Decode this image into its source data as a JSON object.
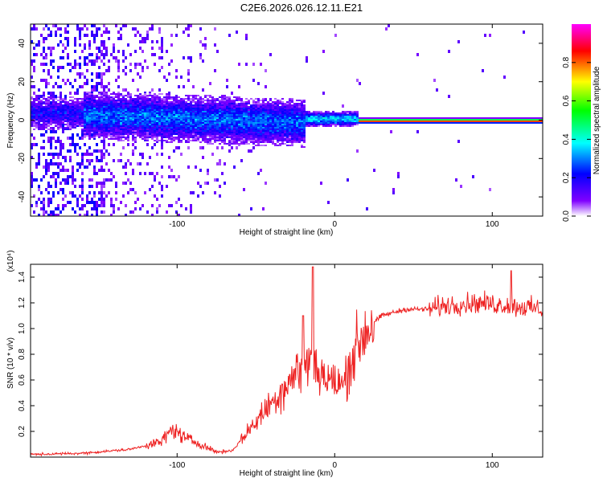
{
  "title": "C2E6.2026.026.12.11.E21",
  "chart_data": [
    {
      "type": "heatmap",
      "xlabel": "Height of straight line (km)",
      "ylabel": "Frequency (Hz)",
      "xlim": [
        -193,
        132
      ],
      "ylim": [
        -50,
        50
      ],
      "xticks": [
        -100,
        0,
        100
      ],
      "yticks": [
        -40,
        -20,
        0,
        20,
        40
      ],
      "colorbar": {
        "label": "Normalized spectral amplitude",
        "range": [
          0,
          1
        ],
        "ticks": [
          "0.0",
          "0.2",
          "0.4",
          "0.6",
          "0.8"
        ],
        "colors": [
          "#ffffff",
          "#8000ff",
          "#0000ff",
          "#00ffff",
          "#00ff00",
          "#ffff00",
          "#ff0000",
          "#ff00ff"
        ]
      }
    },
    {
      "type": "line",
      "xlabel": "Height of straight line (km)",
      "ylabel": "SNR (10 * v/v)",
      "yscale_label": "(x10⁴)",
      "xlim": [
        -193,
        132
      ],
      "ylim": [
        0,
        1.5
      ],
      "xticks": [
        -100,
        0,
        100
      ],
      "yticks": [
        "0.2",
        "0.4",
        "0.6",
        "0.8",
        "1.0",
        "1.2",
        "1.4"
      ],
      "series_color": "#ee2222",
      "envelope": [
        {
          "x": -193,
          "y": 0.02
        },
        {
          "x": -160,
          "y": 0.03
        },
        {
          "x": -130,
          "y": 0.06
        },
        {
          "x": -110,
          "y": 0.12
        },
        {
          "x": -103,
          "y": 0.22
        },
        {
          "x": -95,
          "y": 0.15
        },
        {
          "x": -85,
          "y": 0.1
        },
        {
          "x": -75,
          "y": 0.04
        },
        {
          "x": -65,
          "y": 0.05
        },
        {
          "x": -55,
          "y": 0.2
        },
        {
          "x": -45,
          "y": 0.35
        },
        {
          "x": -35,
          "y": 0.5
        },
        {
          "x": -25,
          "y": 0.65
        },
        {
          "x": -15,
          "y": 0.75
        },
        {
          "x": -5,
          "y": 0.6
        },
        {
          "x": 5,
          "y": 0.55
        },
        {
          "x": 10,
          "y": 0.75
        },
        {
          "x": 20,
          "y": 1.0
        },
        {
          "x": 30,
          "y": 1.1
        },
        {
          "x": 45,
          "y": 1.15
        },
        {
          "x": 60,
          "y": 1.15
        },
        {
          "x": 70,
          "y": 1.18
        },
        {
          "x": 90,
          "y": 1.2
        },
        {
          "x": 110,
          "y": 1.18
        },
        {
          "x": 132,
          "y": 1.15
        }
      ],
      "peaks": [
        {
          "x": -14,
          "y": 1.48
        },
        {
          "x": -20,
          "y": 1.1
        },
        {
          "x": 112,
          "y": 1.45
        }
      ]
    }
  ]
}
